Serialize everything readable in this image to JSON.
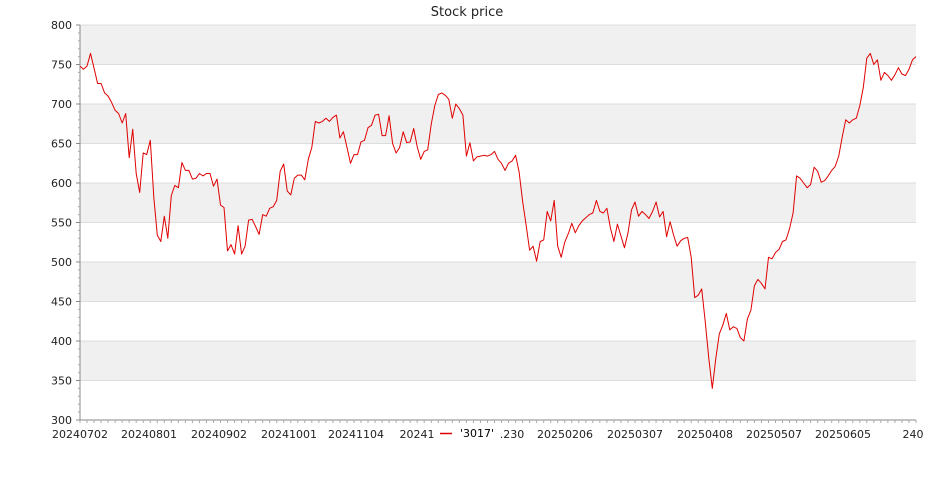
{
  "chart_data": {
    "type": "line",
    "title": "Stock price",
    "xlabel": "",
    "ylabel": "",
    "ylim": [
      300,
      800
    ],
    "y_ticks": [
      300,
      350,
      400,
      450,
      500,
      550,
      600,
      650,
      700,
      750,
      800
    ],
    "x_tick_labels": [
      "20240702",
      "20240801",
      "20240902",
      "20241001",
      "20241104",
      "20241",
      ".230",
      "20250206",
      "20250307",
      "20250408",
      "20250507",
      "20250605",
      "240"
    ],
    "grid": true,
    "legend_position": "bottom-center",
    "series": [
      {
        "name": "'3017'",
        "color": "#e00000",
        "values": [
          748,
          744,
          748,
          764,
          745,
          726,
          726,
          714,
          710,
          702,
          692,
          688,
          676,
          688,
          632,
          668,
          612,
          588,
          638,
          636,
          654,
          582,
          534,
          526,
          558,
          530,
          584,
          597,
          594,
          626,
          616,
          616,
          605,
          606,
          612,
          609,
          612,
          612,
          596,
          605,
          572,
          569,
          514,
          522,
          510,
          546,
          510,
          520,
          553,
          554,
          545,
          535,
          560,
          558,
          568,
          570,
          578,
          615,
          624,
          590,
          585,
          606,
          610,
          610,
          604,
          630,
          645,
          678,
          676,
          678,
          682,
          678,
          683,
          686,
          657,
          665,
          645,
          625,
          636,
          636,
          652,
          654,
          670,
          673,
          686,
          687,
          660,
          660,
          685,
          650,
          638,
          645,
          665,
          651,
          652,
          669,
          646,
          630,
          640,
          642,
          675,
          698,
          712,
          714,
          711,
          706,
          682,
          700,
          694,
          686,
          634,
          651,
          628,
          633,
          634,
          635,
          634,
          636,
          640,
          630,
          625,
          616,
          625,
          628,
          635,
          614,
          577,
          547,
          515,
          520,
          501,
          526,
          528,
          564,
          552,
          578,
          520,
          506,
          525,
          536,
          549,
          537,
          546,
          552,
          556,
          560,
          562,
          578,
          564,
          562,
          568,
          543,
          526,
          548,
          533,
          518,
          537,
          566,
          576,
          558,
          564,
          560,
          555,
          564,
          576,
          557,
          564,
          532,
          551,
          534,
          520,
          527,
          530,
          531,
          506,
          455,
          458,
          466,
          425,
          378,
          340,
          378,
          409,
          420,
          435,
          414,
          418,
          416,
          404,
          400,
          428,
          439,
          470,
          478,
          473,
          466,
          506,
          504,
          512,
          516,
          526,
          528,
          542,
          562,
          609,
          606,
          600,
          594,
          598,
          620,
          615,
          601,
          603,
          609,
          616,
          621,
          634,
          658,
          680,
          676,
          680,
          682,
          698,
          721,
          758,
          764,
          750,
          756,
          730,
          740,
          736,
          730,
          737,
          746,
          738,
          736,
          744,
          756,
          760
        ]
      }
    ]
  }
}
